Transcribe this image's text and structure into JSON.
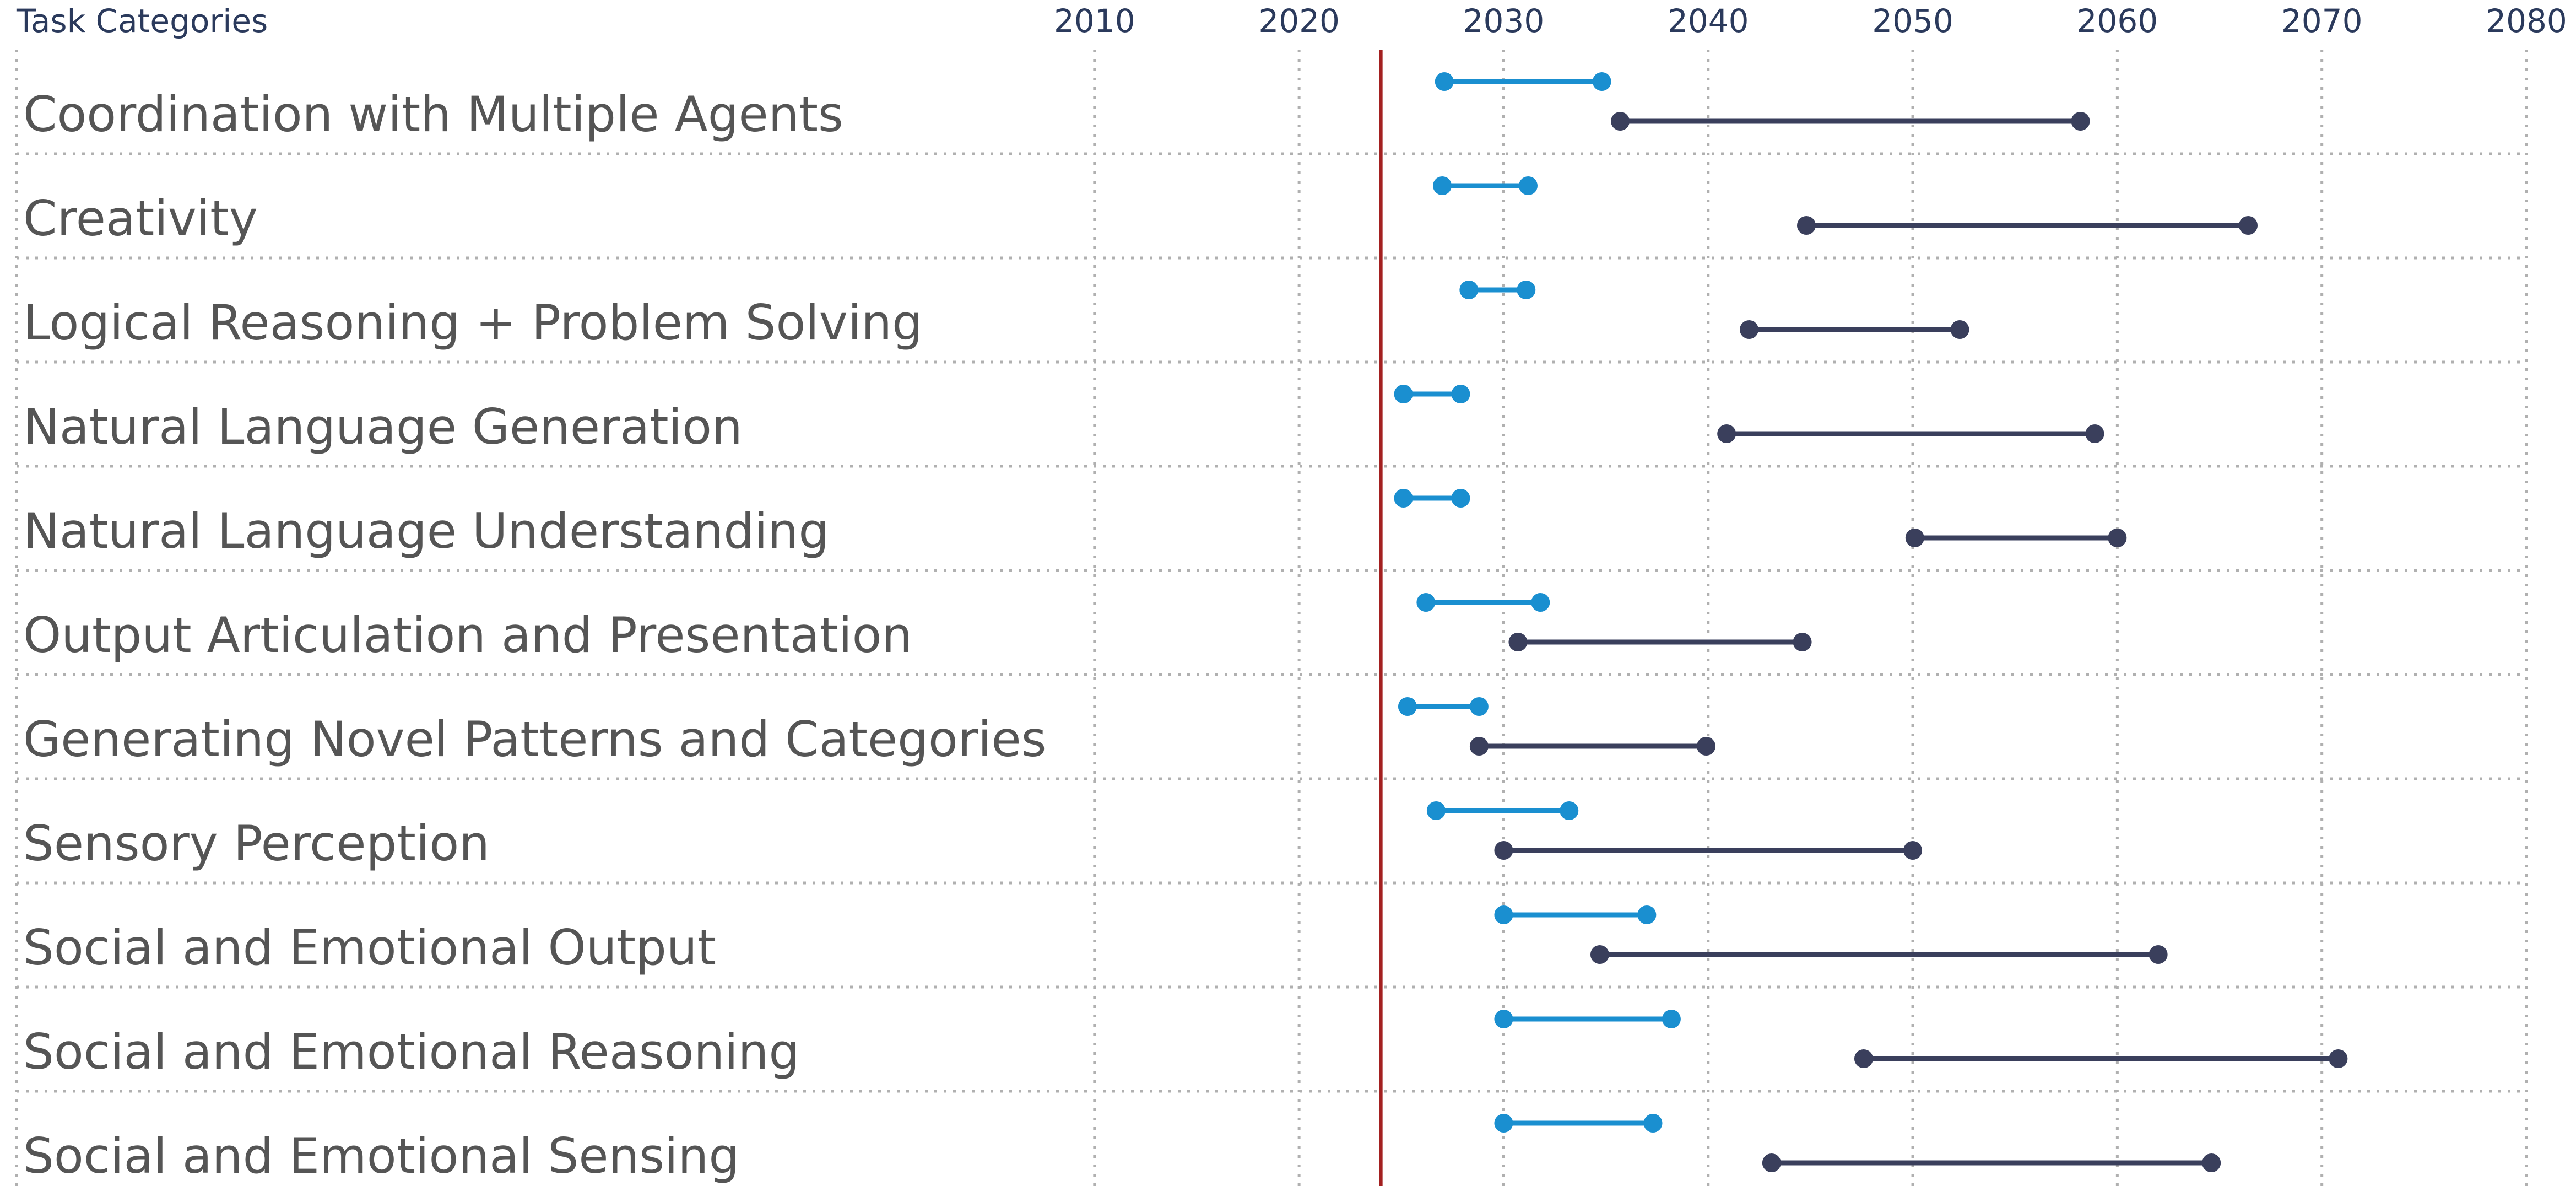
{
  "chart_data": {
    "type": "dumbbell",
    "title": "Task Categories",
    "categories": [
      "Coordination with Multiple Agents",
      "Creativity",
      "Logical Reasoning + Problem Solving",
      "Natural Language Generation",
      "Natural Language Understanding",
      "Output Articulation and Presentation",
      "Generating Novel Patterns and Categories",
      "Sensory Perception",
      "Social and Emotional Output",
      "Social and Emotional Reasoning",
      "Social and Emotional Sensing"
    ],
    "series": [
      {
        "color": "#1a8fd0",
        "start": [
          2027.1,
          2027.0,
          2028.3,
          2025.1,
          2025.1,
          2026.2,
          2025.3,
          2026.7,
          2030.0,
          2030.0,
          2030.0
        ],
        "end": [
          2034.8,
          2031.2,
          2031.1,
          2027.9,
          2027.9,
          2031.8,
          2028.8,
          2033.2,
          2037.0,
          2038.2,
          2037.3
        ]
      },
      {
        "color": "#3a3f5c",
        "start": [
          2035.7,
          2044.8,
          2042.0,
          2040.9,
          2050.1,
          2030.7,
          2028.8,
          2030.0,
          2034.7,
          2047.6,
          2043.1
        ],
        "end": [
          2058.2,
          2066.4,
          2052.3,
          2058.9,
          2060.0,
          2044.6,
          2039.9,
          2050.0,
          2062.0,
          2070.8,
          2064.6
        ]
      }
    ],
    "xlim": [
      1957.3,
      2080
    ],
    "xticks": [
      2010,
      2020,
      2030,
      2040,
      2050,
      2060,
      2070,
      2080
    ],
    "reference_x": 2024.0,
    "reference_color": "#a32020",
    "grid": true
  }
}
